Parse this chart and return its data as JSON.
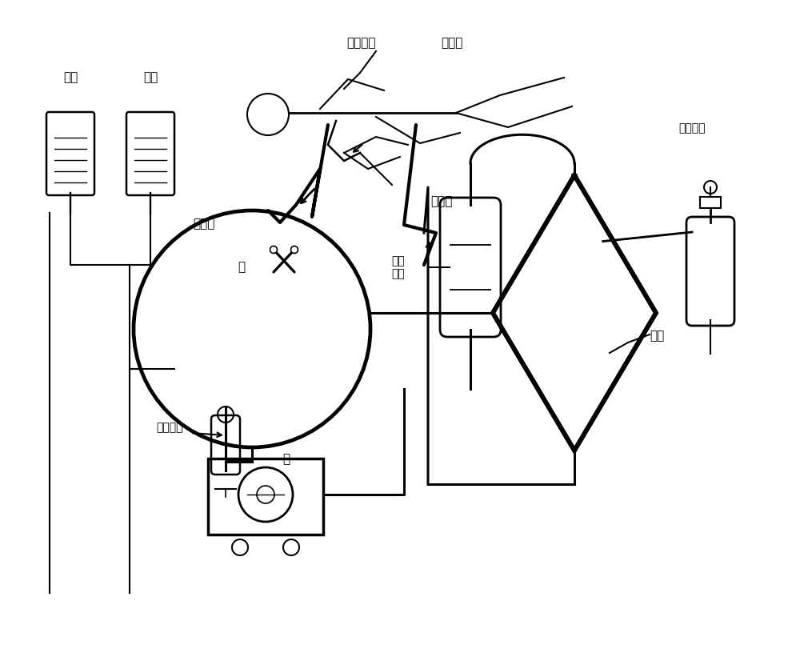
{
  "bg_color": "#ffffff",
  "line_color": "#000000",
  "title": "",
  "labels": {
    "zhu_dong_mai_gong": "主动脉弓",
    "you_xin_fang": "右心房",
    "ye_ti": "液体",
    "gan_su": "肝素",
    "yin_liu_xue": "引流血",
    "guan_zhu_xue": "灌注血",
    "qiao": "桥",
    "re_huan_qi": "热变\n换器",
    "mo_fei": "膜肺",
    "yang_gong_qi_liu": "氧供气流",
    "fan_kui_tiao_jie": "反馈调节",
    "beng": "泵"
  },
  "label_fontsize": 11,
  "label_fontsize_small": 10,
  "figsize": [
    10.0,
    8.16
  ],
  "dpi": 100
}
